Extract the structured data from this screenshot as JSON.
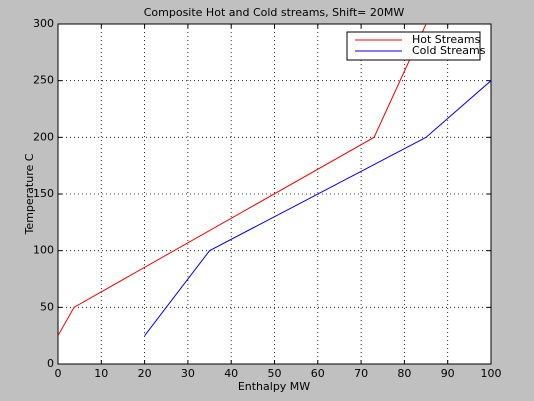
{
  "chart_data": {
    "type": "line",
    "title": "Composite Hot and Cold streams, Shift= 20MW",
    "xlabel": "Enthalpy MW",
    "ylabel": "Temperature C",
    "series": [
      {
        "name": "Hot Streams",
        "color": "#ff0000",
        "x": [
          0,
          3.7,
          73,
          85
        ],
        "values": [
          25,
          50,
          200,
          300
        ]
      },
      {
        "name": "Cold Streams",
        "color": "#0000ff",
        "x": [
          20,
          35,
          85,
          100
        ],
        "values": [
          25,
          100,
          200,
          250
        ]
      }
    ],
    "xlim": [
      0,
      100
    ],
    "xticks": [
      0,
      10,
      20,
      30,
      40,
      50,
      60,
      70,
      80,
      90,
      100
    ],
    "ylim": [
      0,
      300
    ],
    "yticks": [
      0,
      50,
      100,
      150,
      200,
      250,
      300
    ],
    "grid": true,
    "legend": "upper right"
  }
}
